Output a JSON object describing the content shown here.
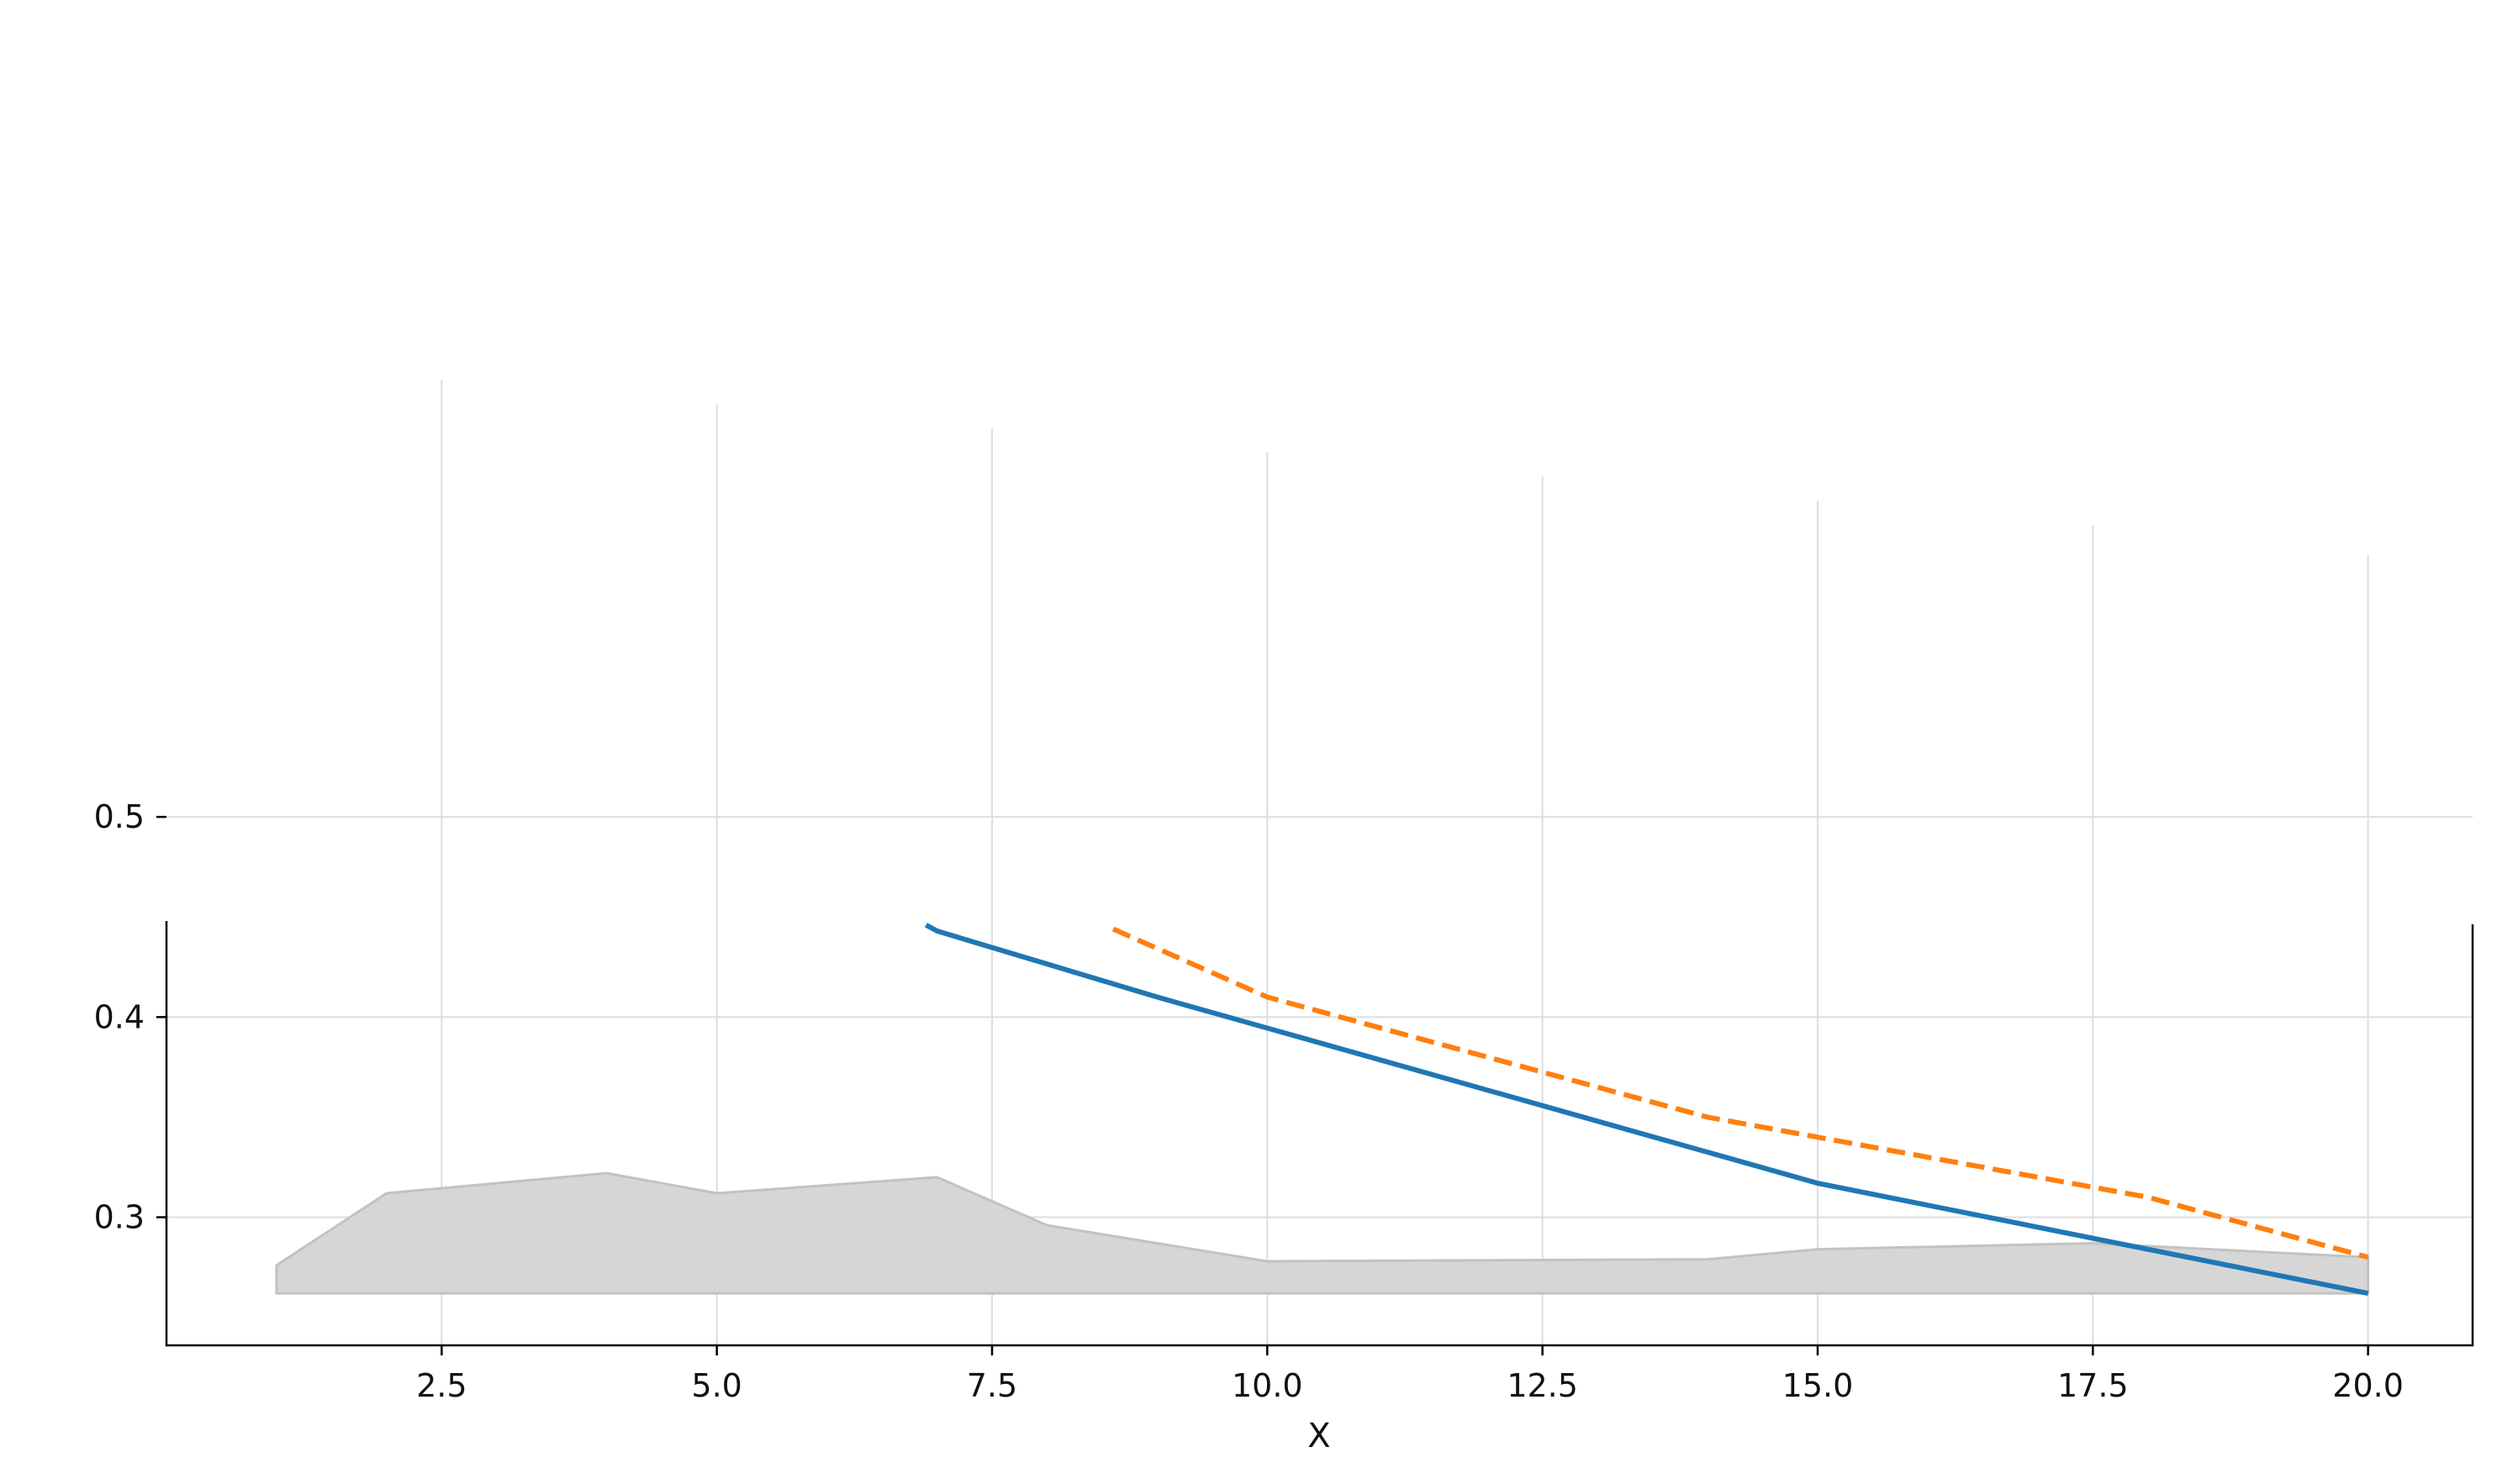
{
  "chart_data": {
    "type": "line",
    "title": "",
    "xlabel": "X",
    "ylabel": "",
    "xlim": [
      0.0,
      20.95
    ],
    "ylim": [
      0.236,
      0.448
    ],
    "xticks": [
      2.5,
      5.0,
      7.5,
      10.0,
      12.5,
      15.0,
      17.5,
      20.0
    ],
    "xtick_labels": [
      "2.5",
      "5.0",
      "7.5",
      "10.0",
      "12.5",
      "15.0",
      "17.5",
      "20.0"
    ],
    "yticks": [
      0.3,
      0.4,
      0.5
    ],
    "ytick_labels": [
      "0.3",
      "0.4",
      "0.5"
    ],
    "grid": true,
    "colors": {
      "solid": "#1f77b4",
      "dashed": "#ff7f0e",
      "band": "#d6d6d6",
      "band_edge": "#c2c2c2"
    },
    "series": [
      {
        "style": "solid",
        "x": [
          6.9,
          7.0,
          9.0,
          15.0,
          20.0
        ],
        "y": [
          0.446,
          0.443,
          0.41,
          0.317,
          0.262
        ]
      },
      {
        "style": "dashed",
        "x": [
          8.6,
          10.0,
          14.0,
          15.0,
          18.0,
          20.0
        ],
        "y": [
          0.444,
          0.41,
          0.35,
          0.34,
          0.31,
          0.28
        ]
      },
      {
        "style": "area",
        "baseline": 0.262,
        "x": [
          1,
          2,
          4,
          5,
          7,
          8,
          10,
          14,
          15,
          17.5,
          20
        ],
        "y": [
          0.276,
          0.312,
          0.322,
          0.312,
          0.32,
          0.296,
          0.278,
          0.279,
          0.284,
          0.287,
          0.28
        ]
      }
    ]
  }
}
